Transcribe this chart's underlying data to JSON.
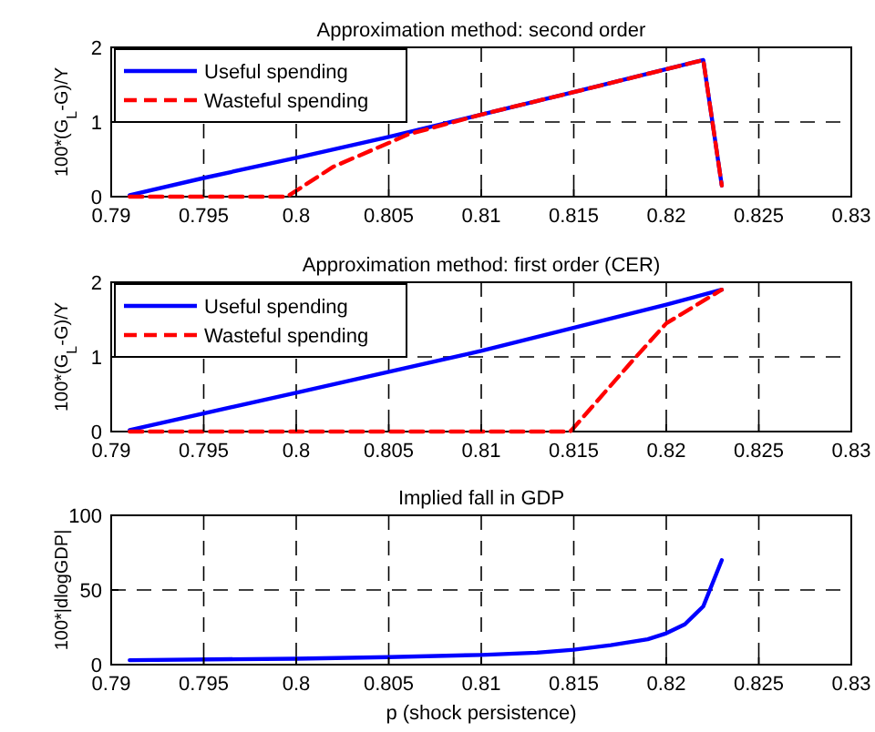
{
  "chart_data": [
    {
      "type": "line",
      "title": "Approximation method: second order",
      "ylabel": "100*(G$_{L}$-G)/Y",
      "xlim": [
        0.79,
        0.83
      ],
      "xticks": [
        0.79,
        0.795,
        0.8,
        0.805,
        0.81,
        0.815,
        0.82,
        0.825,
        0.83
      ],
      "ylim": [
        0,
        2
      ],
      "yticks": [
        0,
        1,
        2
      ],
      "grid": true,
      "legend": "top left",
      "series": [
        {
          "name": "Useful spending",
          "color": "#0000ff",
          "line_style": "solid",
          "x": [
            0.791,
            0.795,
            0.8,
            0.805,
            0.81,
            0.815,
            0.822,
            0.823
          ],
          "values": [
            0.02,
            0.25,
            0.52,
            0.8,
            1.1,
            1.4,
            1.83,
            0.15
          ]
        },
        {
          "name": "Wasteful spending",
          "color": "#ff0000",
          "line_style": "dashed",
          "x": [
            0.791,
            0.7995,
            0.802,
            0.805,
            0.806,
            0.81,
            0.815,
            0.822,
            0.823
          ],
          "values": [
            0,
            0,
            0.4,
            0.72,
            0.83,
            1.1,
            1.4,
            1.83,
            0.15
          ]
        }
      ]
    },
    {
      "type": "line",
      "title": "Approximation method: first order (CER)",
      "ylabel": "100*(G$_{L}$-G)/Y",
      "xlim": [
        0.79,
        0.83
      ],
      "xticks": [
        0.79,
        0.795,
        0.8,
        0.805,
        0.81,
        0.815,
        0.82,
        0.825,
        0.83
      ],
      "ylim": [
        0,
        2
      ],
      "yticks": [
        0,
        1,
        2
      ],
      "grid": true,
      "legend": "top left",
      "series": [
        {
          "name": "Useful spending",
          "color": "#0000ff",
          "line_style": "solid",
          "x": [
            0.791,
            0.8,
            0.81,
            0.82,
            0.823
          ],
          "values": [
            0.02,
            0.52,
            1.08,
            1.7,
            1.9
          ]
        },
        {
          "name": "Wasteful spending",
          "color": "#ff0000",
          "line_style": "dashed",
          "x": [
            0.791,
            0.8148,
            0.815,
            0.818,
            0.82,
            0.823
          ],
          "values": [
            0,
            0,
            0.05,
            0.9,
            1.45,
            1.9
          ]
        }
      ]
    },
    {
      "type": "line",
      "title": "Implied fall in GDP",
      "xlabel": "p (shock persistence)",
      "ylabel": "100*|dlogGDP|",
      "xlim": [
        0.79,
        0.83
      ],
      "xticks": [
        0.79,
        0.795,
        0.8,
        0.805,
        0.81,
        0.815,
        0.82,
        0.825,
        0.83
      ],
      "ylim": [
        0,
        100
      ],
      "yticks": [
        0,
        50,
        100
      ],
      "grid": true,
      "series": [
        {
          "color": "#0000ff",
          "line_style": "solid",
          "x": [
            0.791,
            0.8,
            0.805,
            0.81,
            0.813,
            0.815,
            0.817,
            0.819,
            0.82,
            0.821,
            0.822,
            0.823
          ],
          "values": [
            3,
            4,
            5,
            6.5,
            8,
            10,
            13,
            17,
            21,
            27,
            39,
            70
          ]
        }
      ]
    }
  ]
}
